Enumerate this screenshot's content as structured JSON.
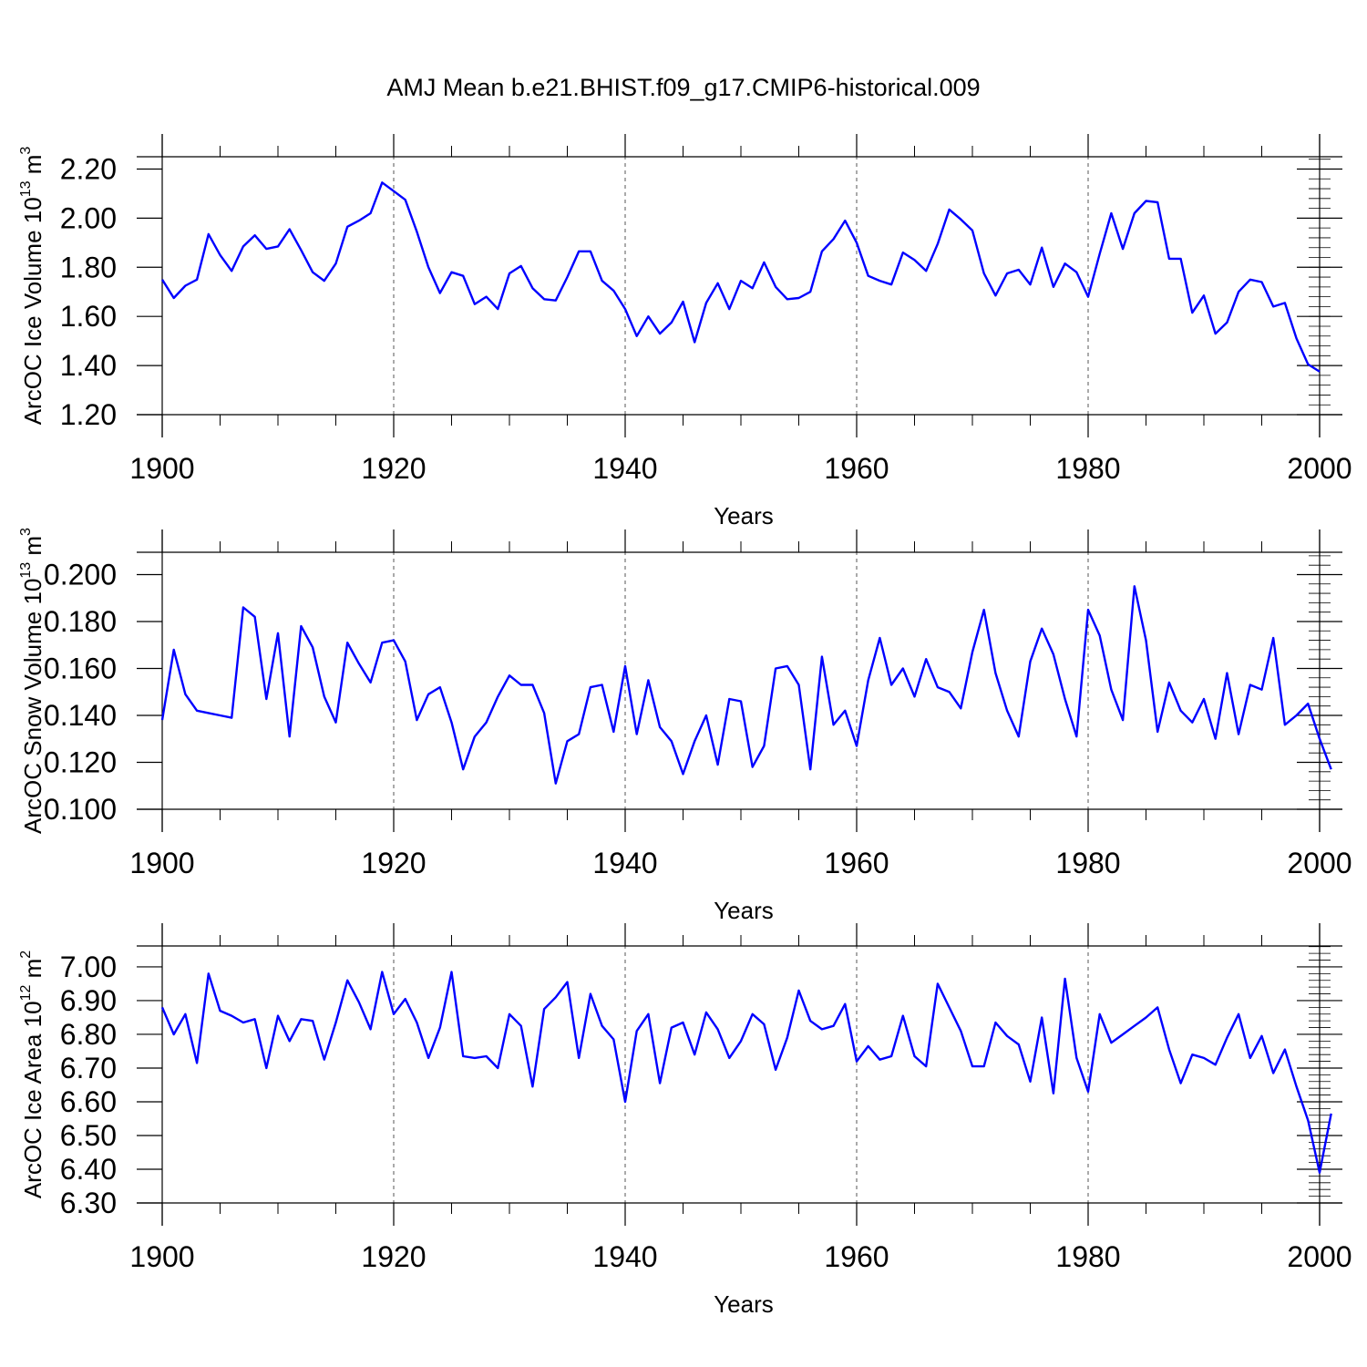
{
  "figure_title": "AMJ Mean b.e21.BHIST.f09_g17.CMIP6-historical.009",
  "colors": {
    "line": "#0000ff",
    "axes": "#000000",
    "grid": "#555555",
    "background": "#ffffff"
  },
  "chart_data": [
    {
      "type": "line",
      "ylabel_text": "ArcOC Ice Volume 10",
      "ylabel_exp": "13",
      "ylabel_unit": " m",
      "ylabel_unit_exp": "3",
      "xlabel": "Years",
      "xlim": [
        1900,
        2000
      ],
      "ylim": [
        1.2,
        2.25
      ],
      "yticks": [
        "1.20",
        "1.40",
        "1.60",
        "1.80",
        "2.00",
        "2.20"
      ],
      "xticks": [
        "1900",
        "1920",
        "1940",
        "1960",
        "1980",
        "2000"
      ],
      "x_start": 1900,
      "series": [
        {
          "name": "Ice Volume",
          "values": [
            1.75,
            1.675,
            1.725,
            1.75,
            1.935,
            1.85,
            1.785,
            1.885,
            1.93,
            1.875,
            1.885,
            1.955,
            1.87,
            1.78,
            1.745,
            1.815,
            1.965,
            1.99,
            2.02,
            2.145,
            2.11,
            2.075,
            1.945,
            1.8,
            1.695,
            1.78,
            1.765,
            1.65,
            1.68,
            1.63,
            1.775,
            1.805,
            1.715,
            1.67,
            1.665,
            1.76,
            1.865,
            1.865,
            1.745,
            1.705,
            1.63,
            1.52,
            1.6,
            1.53,
            1.575,
            1.66,
            1.495,
            1.655,
            1.735,
            1.63,
            1.745,
            1.715,
            1.82,
            1.72,
            1.67,
            1.675,
            1.7,
            1.865,
            1.915,
            1.99,
            1.9,
            1.765,
            1.745,
            1.73,
            1.86,
            1.83,
            1.785,
            1.895,
            2.035,
            1.995,
            1.95,
            1.775,
            1.685,
            1.775,
            1.79,
            1.73,
            1.88,
            1.72,
            1.815,
            1.78,
            1.68,
            1.855,
            2.02,
            1.875,
            2.02,
            2.07,
            2.065,
            1.835,
            1.835,
            1.615,
            1.685,
            1.53,
            1.575,
            1.7,
            1.75,
            1.74,
            1.64,
            1.655,
            1.51,
            1.405,
            1.375
          ]
        }
      ]
    },
    {
      "type": "line",
      "ylabel_text": "ArcOC Snow Volume 10",
      "ylabel_exp": "13",
      "ylabel_unit": " m",
      "ylabel_unit_exp": "3",
      "xlabel": "Years",
      "xlim": [
        1900,
        2000
      ],
      "ylim": [
        0.1,
        0.2095
      ],
      "yticks": [
        "0.100",
        "0.120",
        "0.140",
        "0.160",
        "0.180",
        "0.200"
      ],
      "xticks": [
        "1900",
        "1920",
        "1940",
        "1960",
        "1980",
        "2000"
      ],
      "x_start": 1900,
      "series": [
        {
          "name": "Snow Volume",
          "values": [
            0.138,
            0.168,
            0.149,
            0.142,
            0.141,
            0.14,
            0.139,
            0.186,
            0.182,
            0.147,
            0.175,
            0.131,
            0.178,
            0.169,
            0.148,
            0.137,
            0.171,
            0.162,
            0.154,
            0.171,
            0.172,
            0.163,
            0.138,
            0.149,
            0.152,
            0.137,
            0.117,
            0.131,
            0.137,
            0.148,
            0.157,
            0.153,
            0.153,
            0.141,
            0.111,
            0.129,
            0.132,
            0.152,
            0.153,
            0.133,
            0.161,
            0.132,
            0.155,
            0.135,
            0.129,
            0.115,
            0.129,
            0.14,
            0.119,
            0.147,
            0.146,
            0.118,
            0.127,
            0.16,
            0.161,
            0.153,
            0.117,
            0.165,
            0.136,
            0.142,
            0.127,
            0.155,
            0.173,
            0.153,
            0.16,
            0.148,
            0.164,
            0.152,
            0.15,
            0.143,
            0.167,
            0.185,
            0.158,
            0.142,
            0.131,
            0.163,
            0.177,
            0.166,
            0.147,
            0.131,
            0.185,
            0.174,
            0.151,
            0.138,
            0.195,
            0.172,
            0.133,
            0.154,
            0.142,
            0.137,
            0.147,
            0.13,
            0.158,
            0.132,
            0.153,
            0.151,
            0.173,
            0.136,
            0.14,
            0.145,
            0.13,
            0.117
          ]
        }
      ]
    },
    {
      "type": "line",
      "ylabel_text": "ArcOC Ice Area 10",
      "ylabel_exp": "12",
      "ylabel_unit": " m",
      "ylabel_unit_exp": "2",
      "xlabel": "Years",
      "xlim": [
        1900,
        2000
      ],
      "ylim": [
        6.3,
        7.062
      ],
      "yticks": [
        "6.30",
        "6.40",
        "6.50",
        "6.60",
        "6.70",
        "6.80",
        "6.90",
        "7.00"
      ],
      "xticks": [
        "1900",
        "1920",
        "1940",
        "1960",
        "1980",
        "2000"
      ],
      "x_start": 1900,
      "series": [
        {
          "name": "Ice Area",
          "values": [
            6.88,
            6.8,
            6.86,
            6.715,
            6.98,
            6.87,
            6.855,
            6.835,
            6.845,
            6.7,
            6.855,
            6.78,
            6.845,
            6.84,
            6.725,
            6.835,
            6.96,
            6.895,
            6.815,
            6.985,
            6.86,
            6.905,
            6.835,
            6.73,
            6.82,
            6.985,
            6.735,
            6.73,
            6.735,
            6.7,
            6.86,
            6.825,
            6.645,
            6.875,
            6.91,
            6.955,
            6.73,
            6.92,
            6.825,
            6.785,
            6.6,
            6.81,
            6.86,
            6.655,
            6.82,
            6.835,
            6.74,
            6.865,
            6.815,
            6.73,
            6.78,
            6.86,
            6.83,
            6.695,
            6.79,
            6.93,
            6.84,
            6.815,
            6.825,
            6.89,
            6.72,
            6.765,
            6.725,
            6.735,
            6.855,
            6.735,
            6.705,
            6.95,
            6.88,
            6.81,
            6.705,
            6.705,
            6.835,
            6.795,
            6.77,
            6.66,
            6.85,
            6.625,
            6.965,
            6.73,
            6.63,
            6.86,
            6.775,
            6.8,
            6.825,
            6.85,
            6.88,
            6.755,
            6.655,
            6.74,
            6.73,
            6.71,
            6.79,
            6.86,
            6.73,
            6.795,
            6.685,
            6.755,
            6.645,
            6.545,
            6.39,
            6.565
          ]
        }
      ]
    }
  ]
}
